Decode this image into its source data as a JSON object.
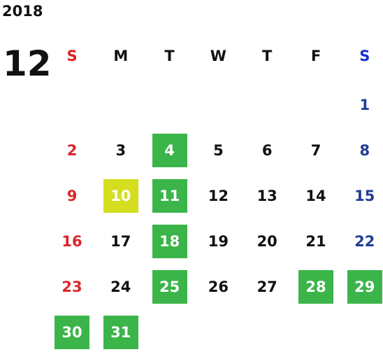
{
  "header": {
    "year": "2018",
    "month": "12"
  },
  "weekdays": [
    {
      "label": "S",
      "color": "#e0201e",
      "day_color": "#d9262b"
    },
    {
      "label": "M",
      "color": "#111111",
      "day_color": "#111111"
    },
    {
      "label": "T",
      "color": "#111111",
      "day_color": "#111111"
    },
    {
      "label": "W",
      "color": "#111111",
      "day_color": "#111111"
    },
    {
      "label": "T",
      "color": "#111111",
      "day_color": "#111111"
    },
    {
      "label": "F",
      "color": "#111111",
      "day_color": "#111111"
    },
    {
      "label": "S",
      "color": "#1a2fd6",
      "day_color": "#1f3e95"
    }
  ],
  "weeks": [
    [
      null,
      null,
      null,
      null,
      null,
      null,
      {
        "day": "1"
      }
    ],
    [
      {
        "day": "2"
      },
      {
        "day": "3"
      },
      {
        "day": "4",
        "fill": "#3bb54a"
      },
      {
        "day": "5"
      },
      {
        "day": "6"
      },
      {
        "day": "7"
      },
      {
        "day": "8"
      }
    ],
    [
      {
        "day": "9"
      },
      {
        "day": "10",
        "fill": "#d4de1f"
      },
      {
        "day": "11",
        "fill": "#3bb54a"
      },
      {
        "day": "12"
      },
      {
        "day": "13"
      },
      {
        "day": "14"
      },
      {
        "day": "15"
      }
    ],
    [
      {
        "day": "16"
      },
      {
        "day": "17"
      },
      {
        "day": "18",
        "fill": "#3bb54a"
      },
      {
        "day": "19"
      },
      {
        "day": "20"
      },
      {
        "day": "21"
      },
      {
        "day": "22"
      }
    ],
    [
      {
        "day": "23"
      },
      {
        "day": "24"
      },
      {
        "day": "25",
        "fill": "#3bb54a"
      },
      {
        "day": "26"
      },
      {
        "day": "27"
      },
      {
        "day": "28",
        "fill": "#3bb54a"
      },
      {
        "day": "29",
        "fill": "#3bb54a"
      }
    ],
    [
      {
        "day": "30",
        "fill": "#3bb54a"
      },
      {
        "day": "31",
        "fill": "#3bb54a"
      },
      null,
      null,
      null,
      null,
      null
    ]
  ]
}
